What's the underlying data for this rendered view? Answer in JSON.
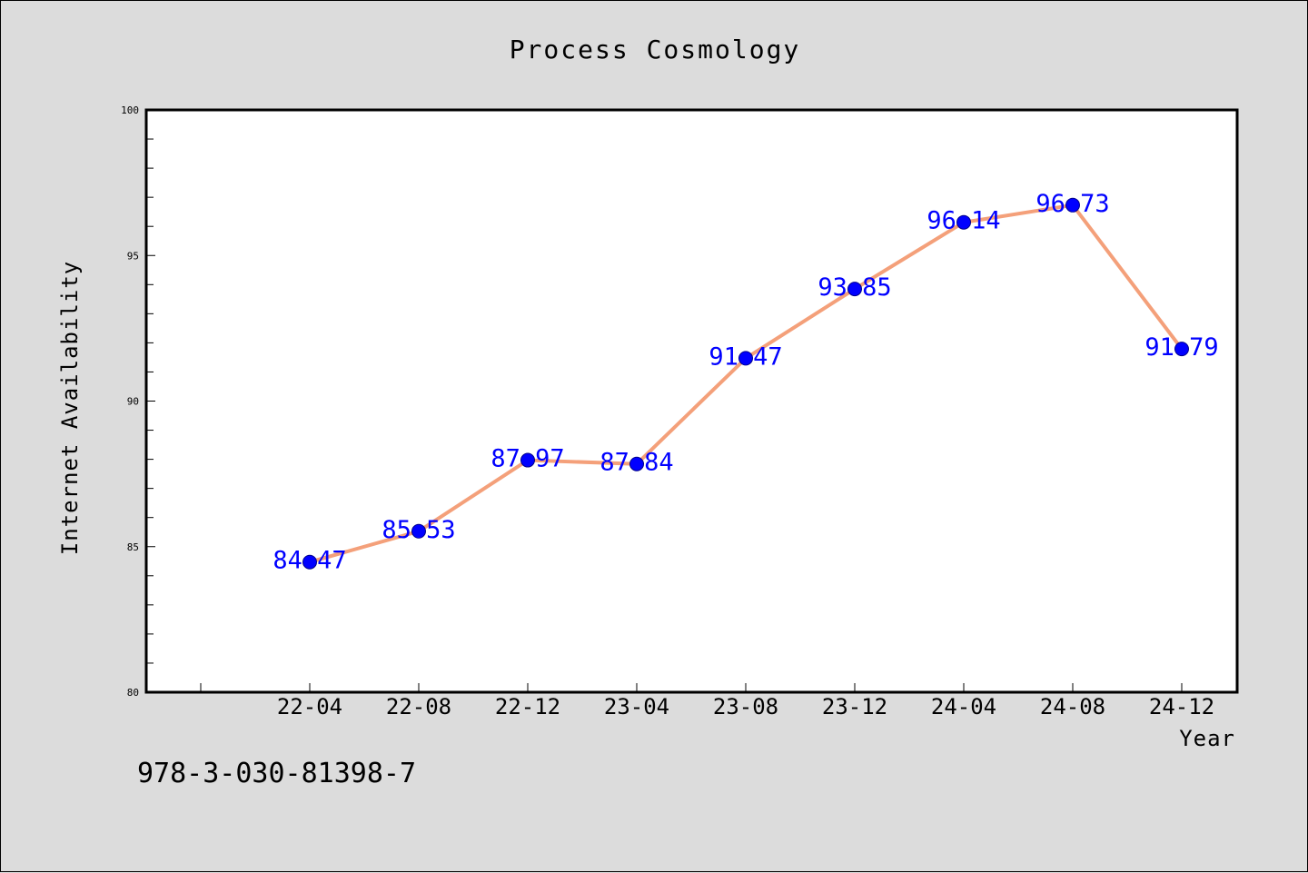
{
  "chart_data": {
    "type": "line",
    "title": "Process Cosmology",
    "xlabel": "Year",
    "ylabel": "Internet Availability",
    "categories": [
      "22-04",
      "22-08",
      "22-12",
      "23-04",
      "23-08",
      "23-12",
      "24-04",
      "24-08",
      "24-12"
    ],
    "values": [
      84.47,
      85.53,
      87.97,
      87.84,
      91.47,
      93.85,
      96.14,
      96.73,
      91.79
    ],
    "data_labels": [
      "84.47",
      "85.53",
      "87.97",
      "87.84",
      "91.47",
      "93.85",
      "96.14",
      "96.73",
      "91.79"
    ],
    "ylim": [
      80,
      100
    ],
    "yticks": [
      "80",
      "85",
      "90",
      "95",
      "100"
    ],
    "grid": false,
    "colors": {
      "line": "#f4a07a",
      "marker": "#0000ff",
      "label": "#0000ff",
      "plot_bg": "#ffffff",
      "page_bg": "#dcdcdc"
    }
  },
  "footnote": "978-3-030-81398-7"
}
